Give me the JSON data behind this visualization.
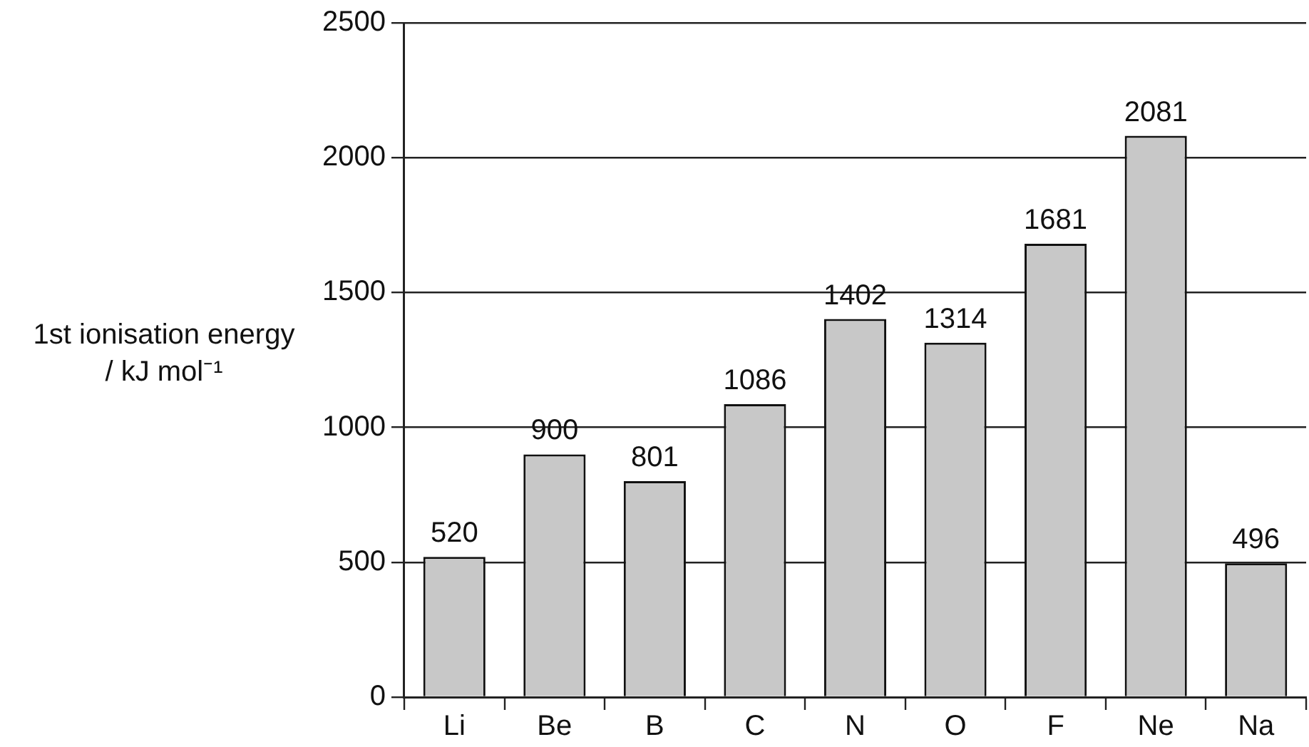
{
  "chart_data": {
    "type": "bar",
    "ylabel": "1st ionisation energy / kJ mol⁻¹",
    "categories": [
      "Li",
      "Be",
      "B",
      "C",
      "N",
      "O",
      "F",
      "Ne",
      "Na"
    ],
    "values": [
      520,
      900,
      801,
      1086,
      1402,
      1314,
      1681,
      2081,
      496
    ],
    "color": "#c8c8c8",
    "ylim": [
      0,
      2500
    ],
    "yticks": [
      0,
      500,
      1000,
      1500,
      2000,
      2500
    ],
    "grid": "y",
    "legend": false,
    "data_labels": true
  }
}
